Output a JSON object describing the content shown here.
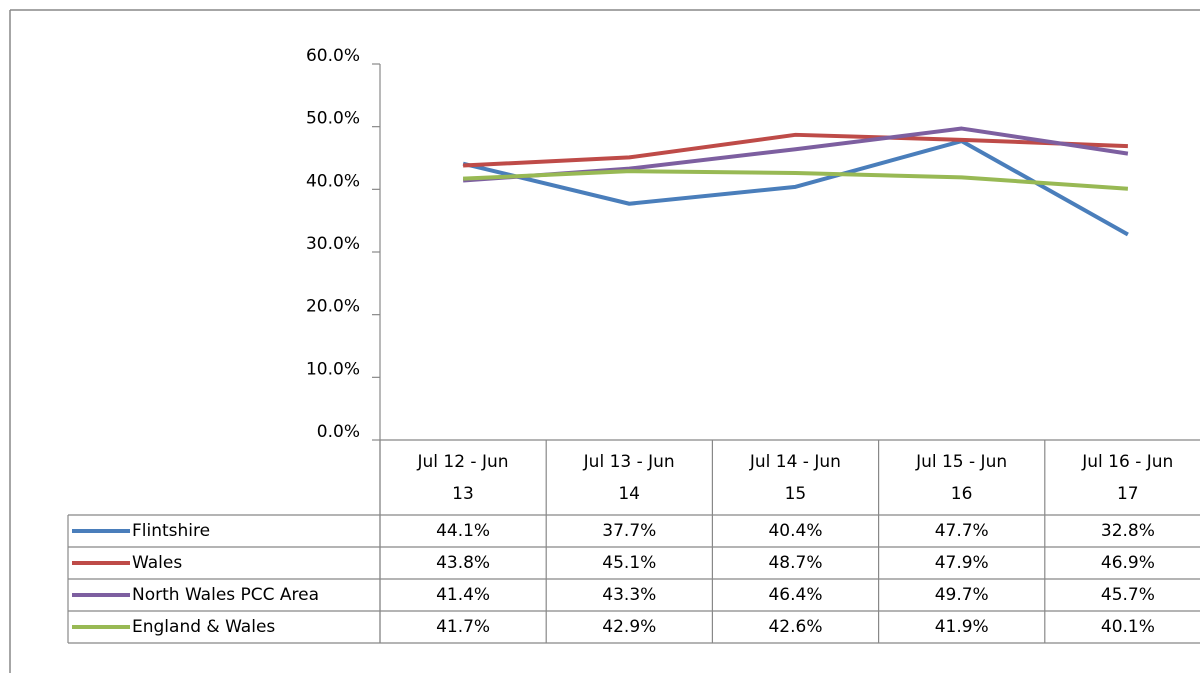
{
  "chart_data": {
    "type": "line",
    "categories": [
      "Jul 12 - Jun 13",
      "Jul 13 - Jun 14",
      "Jul 14 - Jun 15",
      "Jul 15 - Jun 16",
      "Jul 16 - Jun 17"
    ],
    "series": [
      {
        "name": "Flintshire",
        "color": "#4a7ebb",
        "values": [
          44.1,
          37.7,
          40.4,
          47.7,
          32.8
        ],
        "value_labels": [
          "44.1%",
          "37.7%",
          "40.4%",
          "47.7%",
          "32.8%"
        ]
      },
      {
        "name": "Wales",
        "color": "#be4b48",
        "values": [
          43.8,
          45.1,
          48.7,
          47.9,
          46.9
        ],
        "value_labels": [
          "43.8%",
          "45.1%",
          "48.7%",
          "47.9%",
          "46.9%"
        ]
      },
      {
        "name": "North Wales PCC Area",
        "color": "#7d5fa0",
        "values": [
          41.4,
          43.3,
          46.4,
          49.7,
          45.7
        ],
        "value_labels": [
          "41.4%",
          "43.3%",
          "46.4%",
          "49.7%",
          "45.7%"
        ]
      },
      {
        "name": "England & Wales",
        "color": "#98b954",
        "values": [
          41.7,
          42.9,
          42.6,
          41.9,
          40.1
        ],
        "value_labels": [
          "41.7%",
          "42.9%",
          "42.6%",
          "41.9%",
          "40.1%"
        ]
      }
    ],
    "ylim": [
      0,
      60
    ],
    "yticks": [
      {
        "value": 0,
        "label": "0.0%"
      },
      {
        "value": 10,
        "label": "10.0%"
      },
      {
        "value": 20,
        "label": "20.0%"
      },
      {
        "value": 30,
        "label": "30.0%"
      },
      {
        "value": 40,
        "label": "40.0%"
      },
      {
        "value": 50,
        "label": "50.0%"
      },
      {
        "value": 60,
        "label": "60.0%"
      }
    ]
  }
}
